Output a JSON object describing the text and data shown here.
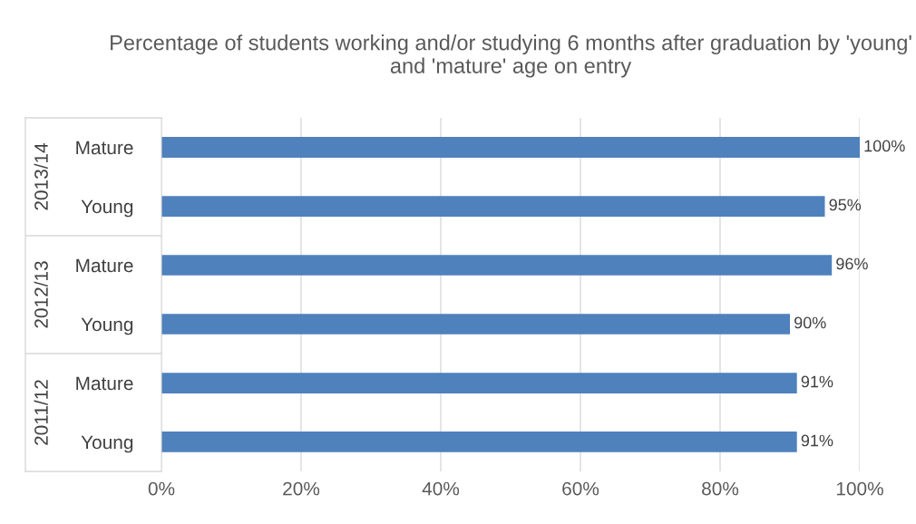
{
  "chart_data": {
    "type": "bar",
    "orientation": "horizontal",
    "title": "Percentage of students working and/or studying 6 months after graduation by 'young' and 'mature' age on entry",
    "categories": [
      "Mature",
      "Young",
      "Mature",
      "Young",
      "Mature",
      "Young"
    ],
    "values": [
      100,
      95,
      96,
      90,
      91,
      91
    ],
    "value_labels": [
      "100%",
      "95%",
      "96%",
      "90%",
      "91%",
      "91%"
    ],
    "color": "#4f81bd",
    "xlim": [
      0,
      100
    ],
    "xticks": [
      {
        "value": 0,
        "label": "0%"
      },
      {
        "value": 20,
        "label": "20%"
      },
      {
        "value": 40,
        "label": "40%"
      },
      {
        "value": 60,
        "label": "60%"
      },
      {
        "value": 80,
        "label": "80%"
      },
      {
        "value": 100,
        "label": "100%"
      }
    ],
    "annotations": [
      "2013/14",
      "2012/13",
      "2011/12"
    ],
    "grid": "x",
    "legend": false
  }
}
